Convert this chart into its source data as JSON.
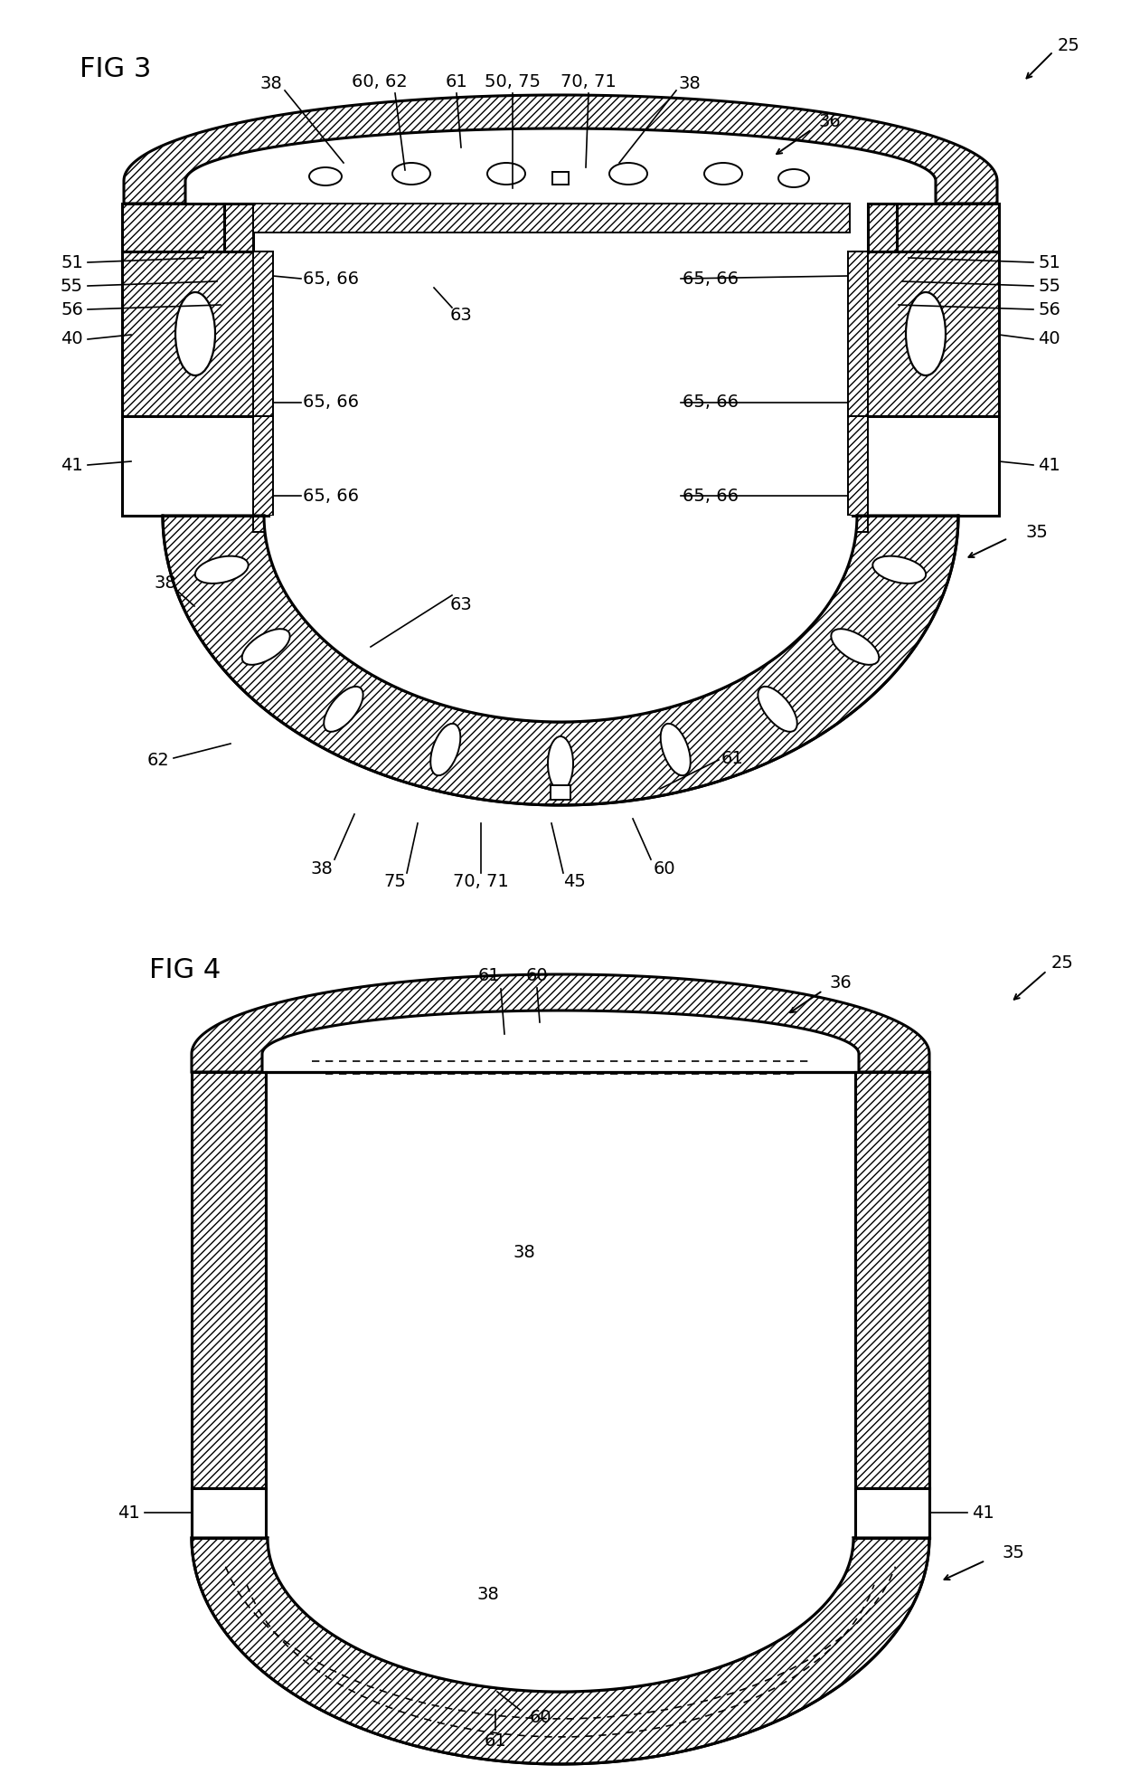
{
  "fig_width": 12.4,
  "fig_height": 19.72,
  "background_color": "#ffffff",
  "line_color": "#000000",
  "lw_main": 2.2,
  "lw_thin": 1.4,
  "label_fs": 14,
  "title_fs": 22
}
